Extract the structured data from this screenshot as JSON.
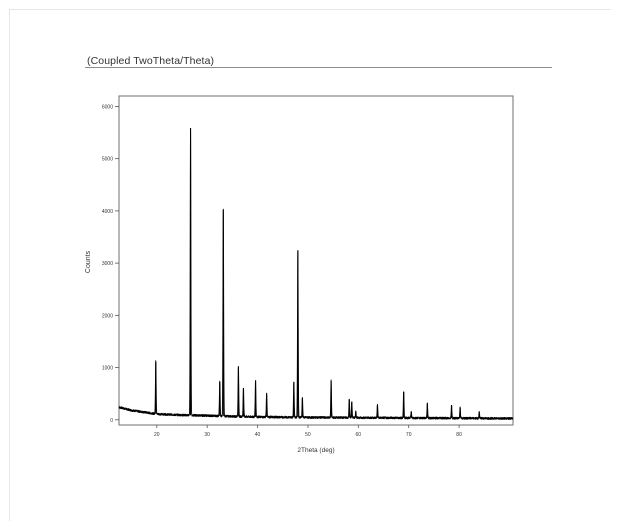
{
  "report": {
    "title": "(Coupled TwoTheta/Theta)"
  },
  "chart_data": {
    "type": "line",
    "xlabel": "2Theta (deg)",
    "ylabel": "Counts",
    "xlim": [
      12.5,
      90.7
    ],
    "ylim": [
      -100,
      6200
    ],
    "x_ticks": [
      20,
      30,
      40,
      50,
      60,
      70,
      80
    ],
    "y_ticks": [
      0,
      1000,
      2000,
      3000,
      4000,
      5000,
      6000
    ],
    "y_tick_labels": [
      "0",
      "1000",
      "2000",
      "3000",
      "4000",
      "5000",
      "6000"
    ],
    "x_tick_labels": [
      "20",
      "30",
      "40",
      "50",
      "60",
      "70",
      "80"
    ],
    "grid": false,
    "line_color": "#000000",
    "background": {
      "x": [
        12.5,
        15,
        20,
        25,
        30,
        35,
        40,
        50,
        60,
        70,
        80,
        90.7
      ],
      "y": [
        240,
        180,
        110,
        90,
        80,
        65,
        55,
        45,
        40,
        35,
        30,
        25
      ]
    },
    "peaks": [
      {
        "x": 19.8,
        "height": 1000
      },
      {
        "x": 26.7,
        "height": 5500
      },
      {
        "x": 32.5,
        "height": 650
      },
      {
        "x": 33.2,
        "height": 3950
      },
      {
        "x": 36.2,
        "height": 950
      },
      {
        "x": 37.2,
        "height": 550
      },
      {
        "x": 39.6,
        "height": 700
      },
      {
        "x": 41.8,
        "height": 450
      },
      {
        "x": 47.2,
        "height": 680
      },
      {
        "x": 48.0,
        "height": 3200
      },
      {
        "x": 48.9,
        "height": 380
      },
      {
        "x": 54.6,
        "height": 700
      },
      {
        "x": 58.2,
        "height": 350
      },
      {
        "x": 58.7,
        "height": 300
      },
      {
        "x": 59.5,
        "height": 120
      },
      {
        "x": 63.8,
        "height": 250
      },
      {
        "x": 69.0,
        "height": 500
      },
      {
        "x": 70.5,
        "height": 120
      },
      {
        "x": 73.7,
        "height": 280
      },
      {
        "x": 78.5,
        "height": 250
      },
      {
        "x": 80.2,
        "height": 200
      },
      {
        "x": 84.0,
        "height": 120
      }
    ]
  }
}
